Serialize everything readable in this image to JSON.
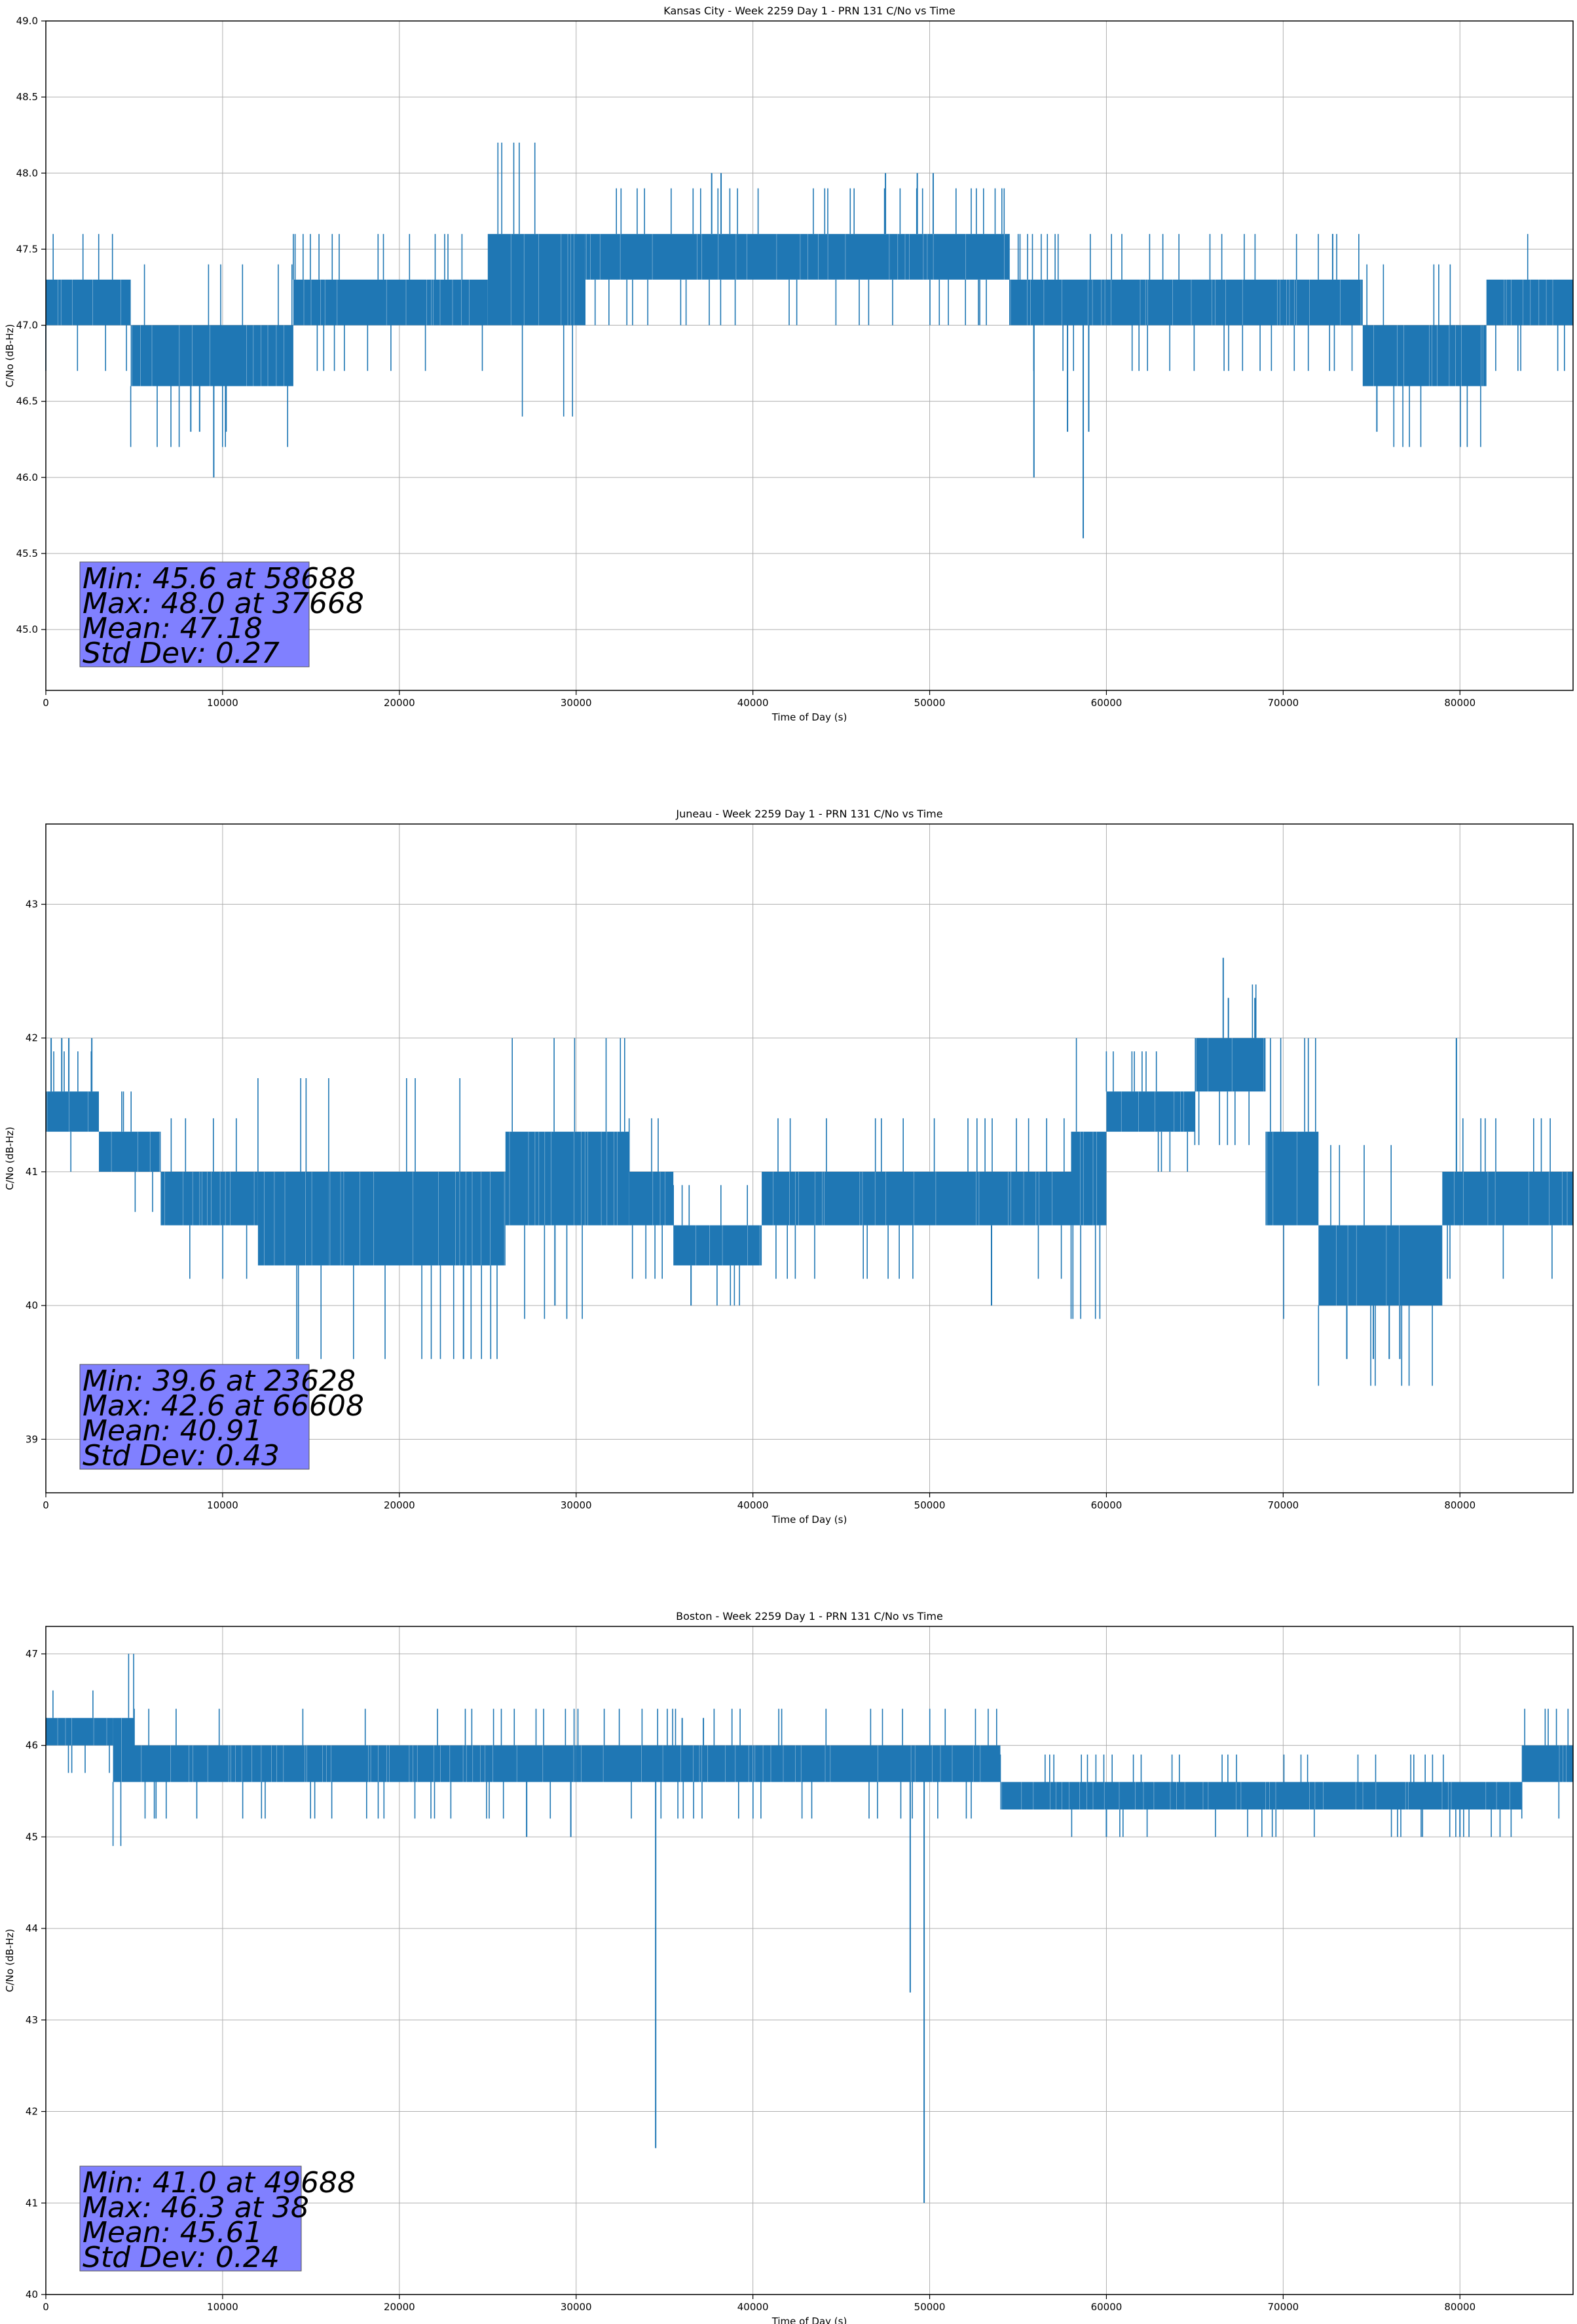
{
  "figure": {
    "background": "#ffffff"
  },
  "colors": {
    "line": "#1f77b4",
    "grid": "#b0b0b0",
    "statbox": "#8080ff",
    "statbox_edge": "#555555"
  },
  "chart_data": [
    {
      "type": "line",
      "title": "Kansas City - Week 2259 Day 1 - PRN 131 C/No vs Time",
      "xlabel": "Time of Day (s)",
      "ylabel": "C/No (dB-Hz)",
      "xlim": [
        0,
        86400
      ],
      "ylim": [
        44.6,
        49.0
      ],
      "xticks": [
        0,
        10000,
        20000,
        30000,
        40000,
        50000,
        60000,
        70000,
        80000
      ],
      "yticks": [
        45.0,
        45.5,
        46.0,
        46.5,
        47.0,
        47.5,
        48.0,
        48.5,
        49.0
      ],
      "ytick_labels": [
        "45.0",
        "45.5",
        "46.0",
        "46.5",
        "47.0",
        "47.5",
        "48.0",
        "48.5",
        "49.0"
      ],
      "grid": true,
      "series": [
        {
          "band_segments": [
            {
              "x": [
                0,
                4800
              ],
              "y": [
                47.0,
                47.3
              ]
            },
            {
              "x": [
                4800,
                14000
              ],
              "y": [
                46.6,
                47.0
              ]
            },
            {
              "x": [
                14000,
                25000
              ],
              "y": [
                47.0,
                47.3
              ]
            },
            {
              "x": [
                25000,
                30500
              ],
              "y": [
                47.0,
                47.6
              ]
            },
            {
              "x": [
                30500,
                54500
              ],
              "y": [
                47.3,
                47.6
              ]
            },
            {
              "x": [
                54500,
                74500
              ],
              "y": [
                47.0,
                47.3
              ]
            },
            {
              "x": [
                74500,
                81500
              ],
              "y": [
                46.6,
                47.0
              ]
            },
            {
              "x": [
                81500,
                86400
              ],
              "y": [
                47.0,
                47.3
              ]
            }
          ],
          "spikes": [
            {
              "x": 8200,
              "y": 46.3
            },
            {
              "x": 8700,
              "y": 46.3
            },
            {
              "x": 10200,
              "y": 46.3
            },
            {
              "x": 9500,
              "y": 46.0
            },
            {
              "x": 37668,
              "y": 48.0
            },
            {
              "x": 38200,
              "y": 48.0
            },
            {
              "x": 47500,
              "y": 48.0
            },
            {
              "x": 49300,
              "y": 48.0
            },
            {
              "x": 50200,
              "y": 48.0
            },
            {
              "x": 55900,
              "y": 46.0
            },
            {
              "x": 57800,
              "y": 46.3
            },
            {
              "x": 58688,
              "y": 45.6
            },
            {
              "x": 59000,
              "y": 46.3
            },
            {
              "x": 75300,
              "y": 46.3
            },
            {
              "x": 72800,
              "y": 47.6
            }
          ]
        }
      ],
      "stats": [
        "Min: 45.6 at 58688",
        "Max: 48.0 at 37668",
        "Mean: 47.18",
        "Std Dev: 0.27"
      ]
    },
    {
      "type": "line",
      "title": "Juneau - Week 2259 Day 1 - PRN 131 C/No vs Time",
      "xlabel": "Time of Day (s)",
      "ylabel": "C/No (dB-Hz)",
      "xlim": [
        0,
        86400
      ],
      "ylim": [
        38.6,
        43.6
      ],
      "xticks": [
        0,
        10000,
        20000,
        30000,
        40000,
        50000,
        60000,
        70000,
        80000
      ],
      "yticks": [
        39,
        40,
        41,
        42,
        43
      ],
      "ytick_labels": [
        "39",
        "40",
        "41",
        "42",
        "43"
      ],
      "grid": true,
      "series": [
        {
          "band_segments": [
            {
              "x": [
                0,
                3000
              ],
              "y": [
                41.3,
                41.6
              ]
            },
            {
              "x": [
                3000,
                6500
              ],
              "y": [
                41.0,
                41.3
              ]
            },
            {
              "x": [
                6500,
                12000
              ],
              "y": [
                40.6,
                41.0
              ]
            },
            {
              "x": [
                12000,
                16000
              ],
              "y": [
                40.3,
                41.0
              ]
            },
            {
              "x": [
                16000,
                26000
              ],
              "y": [
                40.3,
                41.0
              ]
            },
            {
              "x": [
                26000,
                33000
              ],
              "y": [
                40.6,
                41.3
              ]
            },
            {
              "x": [
                33000,
                35500
              ],
              "y": [
                40.6,
                41.0
              ]
            },
            {
              "x": [
                35500,
                40500
              ],
              "y": [
                40.3,
                40.6
              ]
            },
            {
              "x": [
                40500,
                58000
              ],
              "y": [
                40.6,
                41.0
              ]
            },
            {
              "x": [
                58000,
                60000
              ],
              "y": [
                40.6,
                41.3
              ]
            },
            {
              "x": [
                60000,
                65000
              ],
              "y": [
                41.3,
                41.6
              ]
            },
            {
              "x": [
                65000,
                69000
              ],
              "y": [
                41.6,
                42.0
              ]
            },
            {
              "x": [
                69000,
                72000
              ],
              "y": [
                40.6,
                41.3
              ]
            },
            {
              "x": [
                72000,
                79000
              ],
              "y": [
                40.0,
                40.6
              ]
            },
            {
              "x": [
                79000,
                86400
              ],
              "y": [
                40.6,
                41.0
              ]
            }
          ],
          "spikes": [
            {
              "x": 300,
              "y": 42.0
            },
            {
              "x": 900,
              "y": 42.0
            },
            {
              "x": 1300,
              "y": 42.0
            },
            {
              "x": 2600,
              "y": 42.0
            },
            {
              "x": 23628,
              "y": 39.6
            },
            {
              "x": 28800,
              "y": 40.0
            },
            {
              "x": 36500,
              "y": 40.0
            },
            {
              "x": 53500,
              "y": 40.0
            },
            {
              "x": 66608,
              "y": 42.6
            },
            {
              "x": 66900,
              "y": 42.3
            },
            {
              "x": 68400,
              "y": 42.3
            },
            {
              "x": 73600,
              "y": 39.6
            },
            {
              "x": 75100,
              "y": 39.6
            },
            {
              "x": 76000,
              "y": 39.6
            },
            {
              "x": 76600,
              "y": 39.6
            },
            {
              "x": 79800,
              "y": 42.0
            }
          ]
        }
      ],
      "stats": [
        "Min: 39.6 at 23628",
        "Max: 42.6 at 66608",
        "Mean: 40.91",
        "Std Dev: 0.43"
      ]
    },
    {
      "type": "line",
      "title": "Boston - Week 2259 Day 1 - PRN 131 C/No vs Time",
      "xlabel": "Time of Day (s)",
      "ylabel": "C/No (dB-Hz)",
      "xlim": [
        0,
        86400
      ],
      "ylim": [
        40.0,
        47.3
      ],
      "xticks": [
        0,
        10000,
        20000,
        30000,
        40000,
        50000,
        60000,
        70000,
        80000
      ],
      "yticks": [
        40,
        41,
        42,
        43,
        44,
        45,
        46,
        47
      ],
      "ytick_labels": [
        "40",
        "41",
        "42",
        "43",
        "44",
        "45",
        "46",
        "47"
      ],
      "grid": true,
      "series": [
        {
          "band_segments": [
            {
              "x": [
                0,
                3800
              ],
              "y": [
                46.0,
                46.3
              ]
            },
            {
              "x": [
                3800,
                5000
              ],
              "y": [
                45.6,
                46.3
              ]
            },
            {
              "x": [
                5000,
                30000
              ],
              "y": [
                45.6,
                46.0
              ]
            },
            {
              "x": [
                30000,
                54000
              ],
              "y": [
                45.6,
                46.0
              ]
            },
            {
              "x": [
                54000,
                83500
              ],
              "y": [
                45.3,
                45.6
              ]
            },
            {
              "x": [
                83500,
                86400
              ],
              "y": [
                45.6,
                46.0
              ]
            }
          ],
          "spikes": [
            {
              "x": 38,
              "y": 46.3
            },
            {
              "x": 27200,
              "y": 45.0
            },
            {
              "x": 29700,
              "y": 45.0
            },
            {
              "x": 34500,
              "y": 41.6
            },
            {
              "x": 36000,
              "y": 46.3
            },
            {
              "x": 37200,
              "y": 46.3
            },
            {
              "x": 48900,
              "y": 43.3
            },
            {
              "x": 49688,
              "y": 41.0
            },
            {
              "x": 60000,
              "y": 45.0
            },
            {
              "x": 80000,
              "y": 45.0
            }
          ]
        }
      ],
      "stats": [
        "Min: 41.0 at 49688",
        "Max: 46.3 at 38",
        "Mean: 45.61",
        "Std Dev: 0.24"
      ]
    }
  ]
}
